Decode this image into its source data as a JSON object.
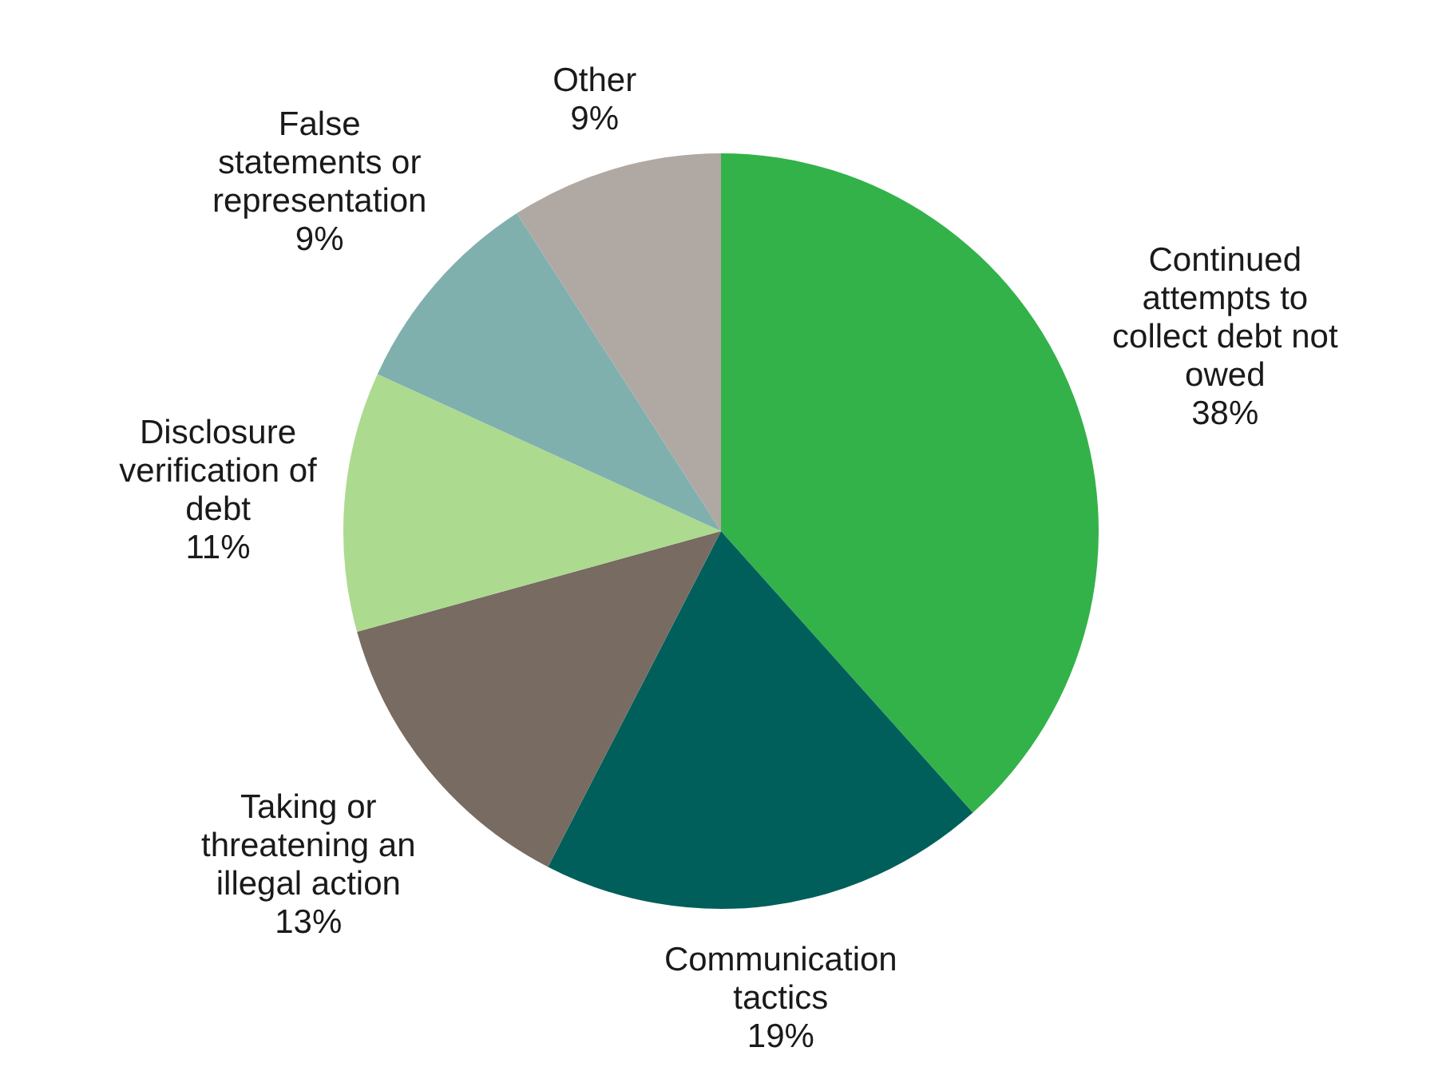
{
  "chart_data": {
    "type": "pie",
    "categories": [
      "Continued\nattempts to\ncollect debt not\nowed",
      "Communication\ntactics",
      "Taking or\nthreatening an\nillegal action",
      "Disclosure\nverification of\ndebt",
      "False\nstatements or\nrepresentation",
      "Other"
    ],
    "values": [
      38,
      19,
      13,
      11,
      9,
      9
    ],
    "value_labels": [
      "38%",
      "19%",
      "13%",
      "11%",
      "9%",
      "9%"
    ],
    "colors": [
      "#33b24a",
      "#005f5a",
      "#776b62",
      "#acda8f",
      "#7fb0ae",
      "#b0a8a3"
    ],
    "legend": false
  }
}
